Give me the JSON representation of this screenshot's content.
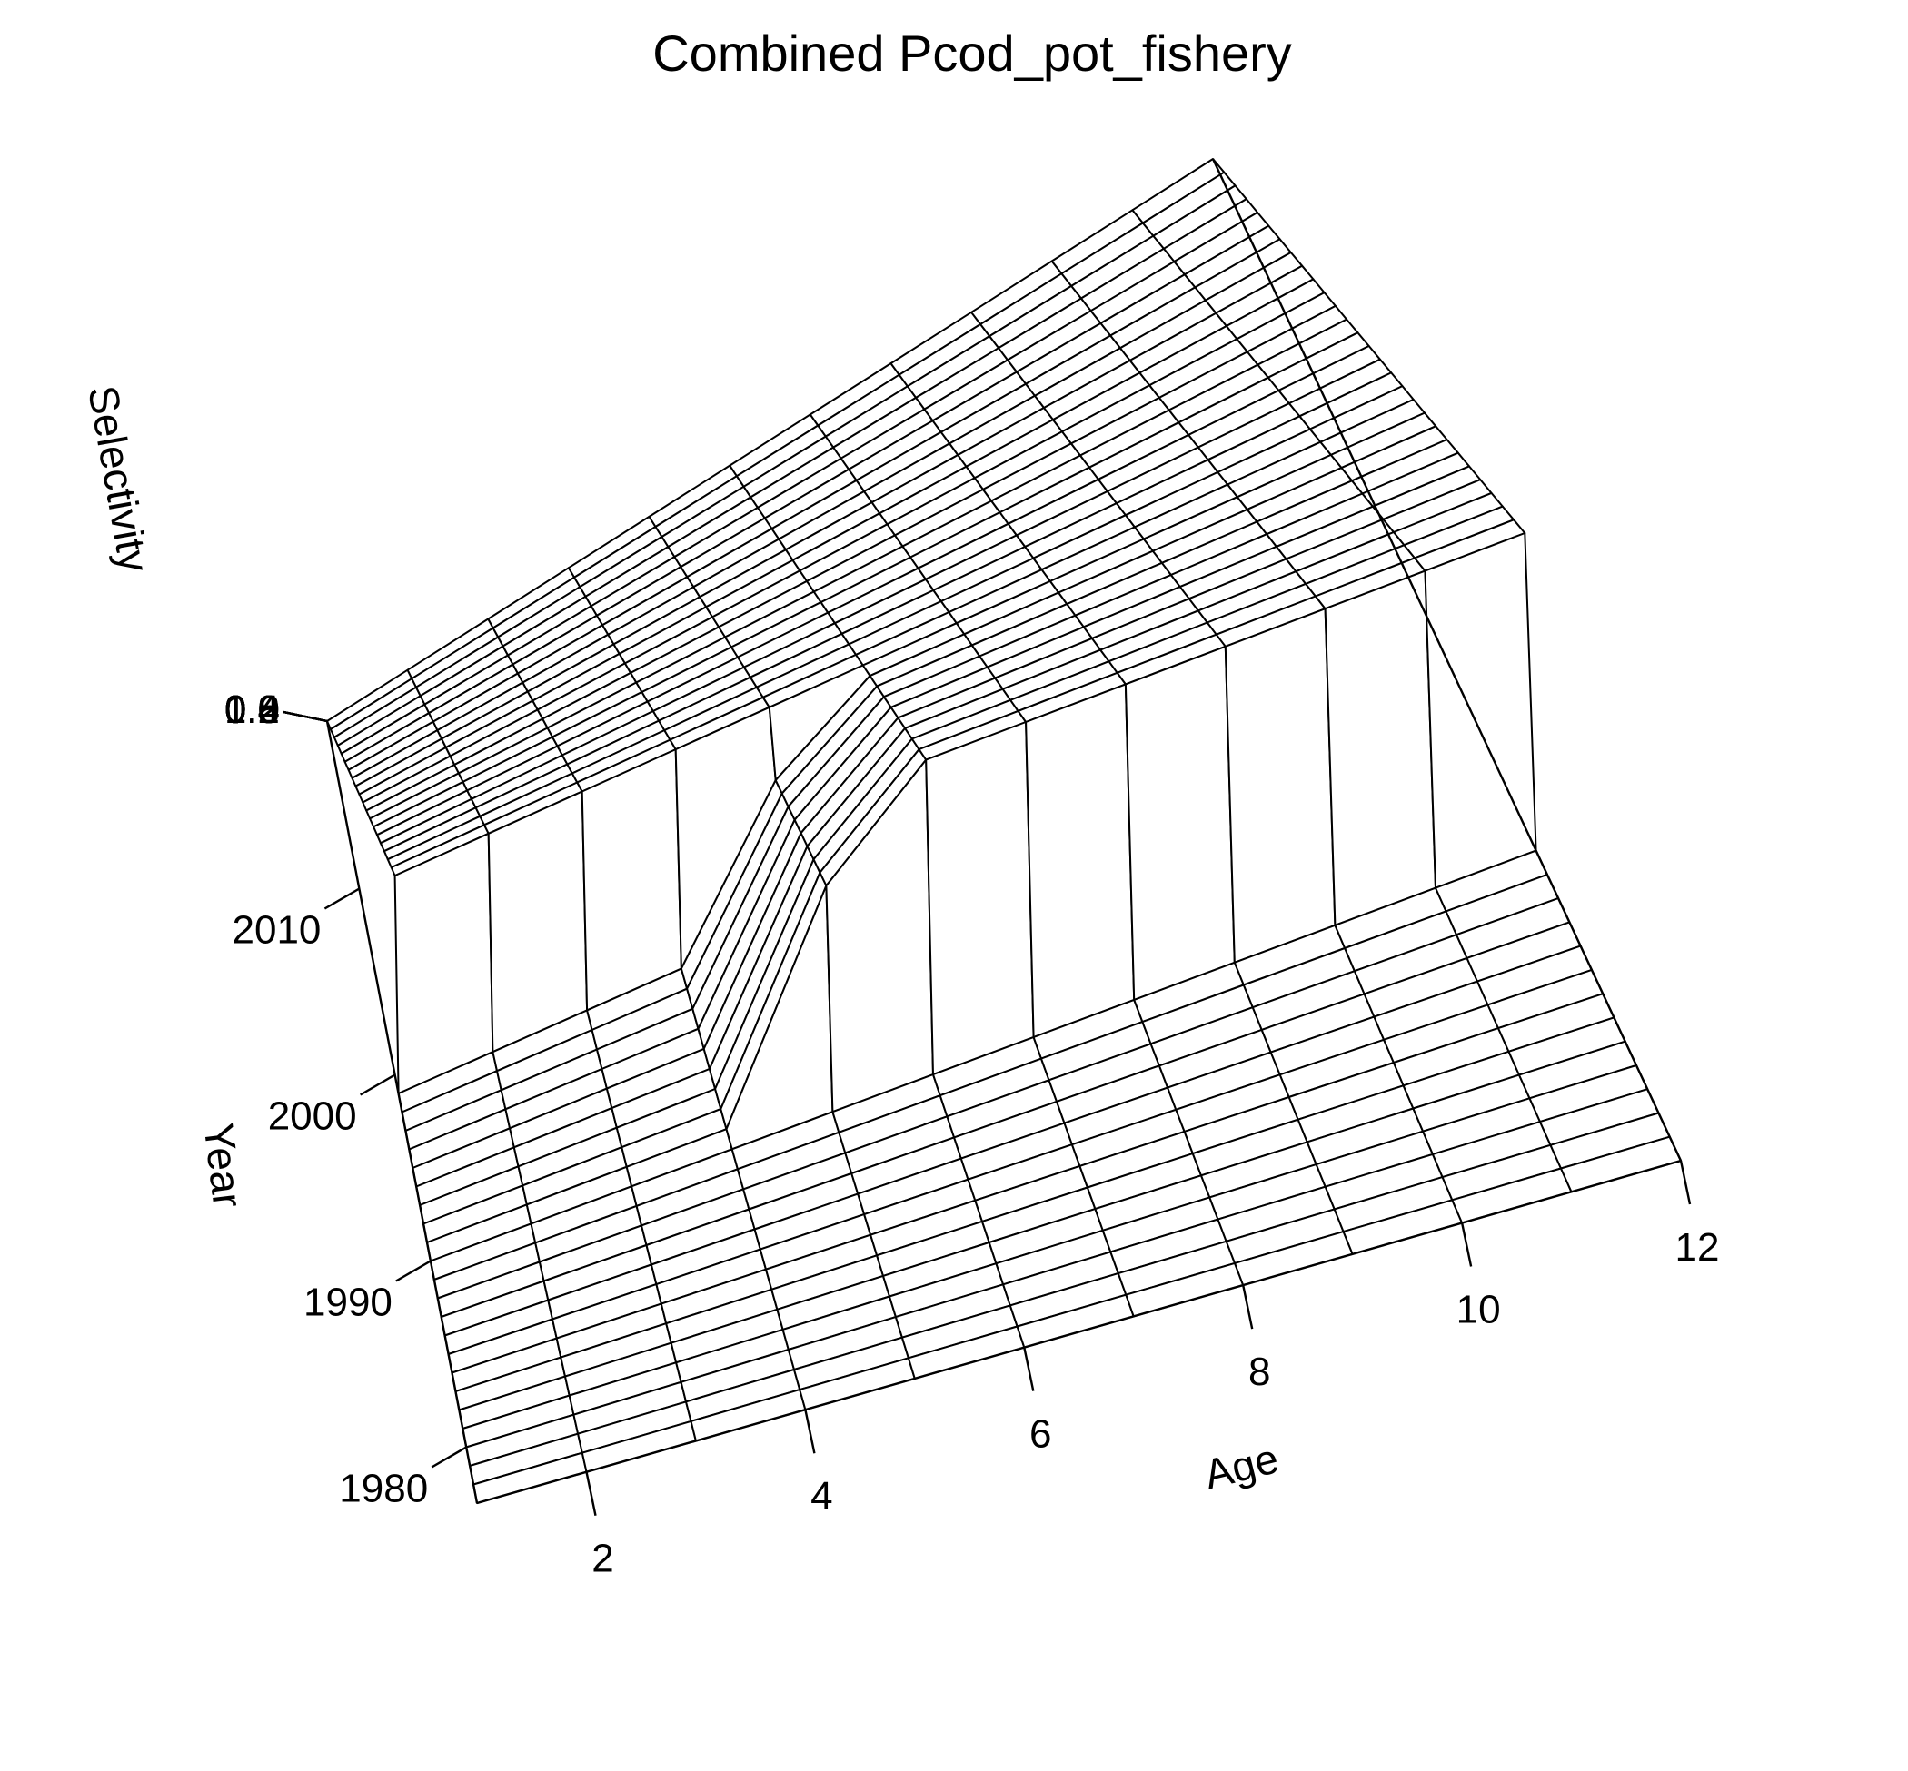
{
  "chart_data": {
    "type": "surface-3d",
    "title": "Combined Pcod_pot_fishery",
    "xlabel": "Age",
    "ylabel": "Year",
    "zlabel": "Selectivity",
    "age_ticks": [
      2,
      4,
      6,
      8,
      10,
      12
    ],
    "year_ticks": [
      1980,
      1990,
      2000,
      2010
    ],
    "selectivity_ticks": [
      "0.0",
      "0.2",
      "0.4",
      "0.6",
      "0.8",
      "1.0"
    ],
    "xlim": [
      1,
      12
    ],
    "ylim": [
      1977,
      2019
    ],
    "zlim": [
      0,
      1
    ],
    "ages": [
      1,
      2,
      3,
      4,
      5,
      6,
      7,
      8,
      9,
      10,
      11,
      12
    ],
    "year_blocks": [
      {
        "years": [
          1977,
          1990
        ],
        "selectivity": [
          0,
          0,
          0,
          0,
          0,
          0,
          0,
          0,
          0,
          0,
          0,
          0
        ]
      },
      {
        "years": [
          1990,
          1999
        ],
        "selectivity": [
          0,
          0,
          0,
          0,
          0.7,
          1,
          1,
          1,
          1,
          1,
          1,
          1
        ]
      },
      {
        "years": [
          2000,
          2019
        ],
        "selectivity": [
          1,
          1,
          1,
          1,
          1,
          1,
          1,
          1,
          1,
          1,
          1,
          1
        ]
      }
    ]
  }
}
